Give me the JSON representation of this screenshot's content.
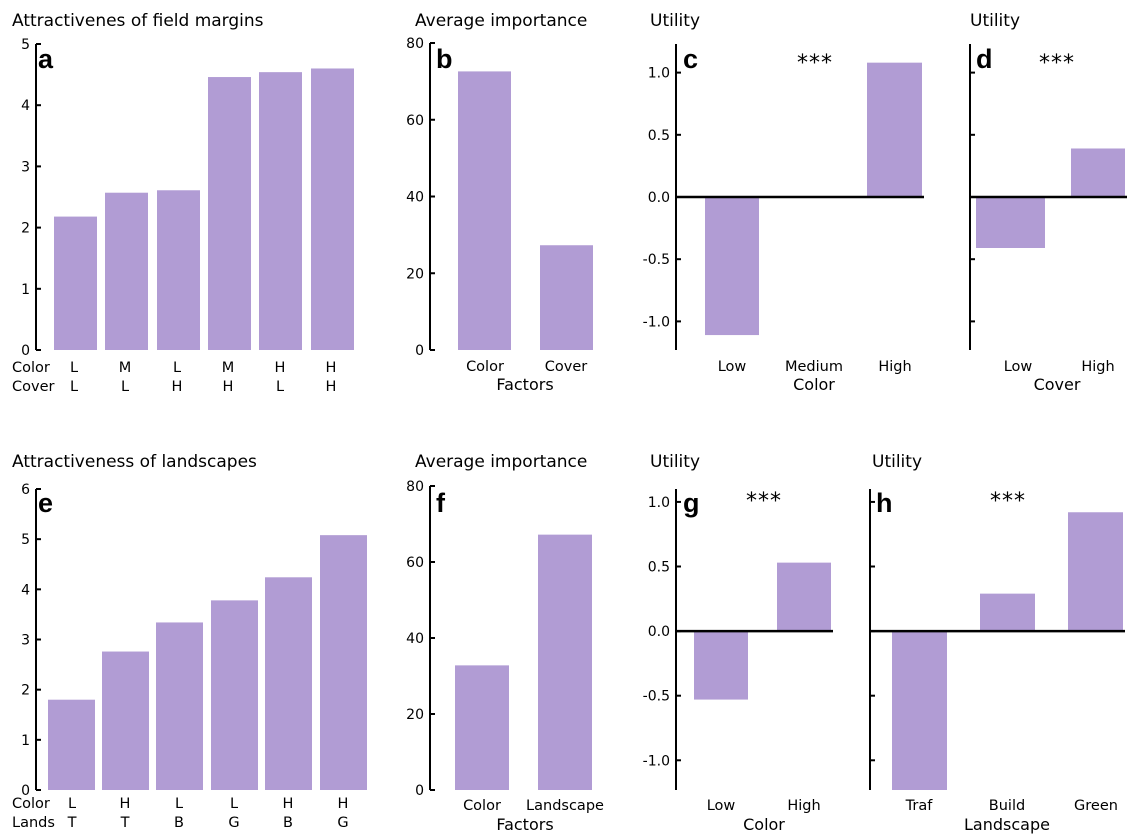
{
  "chart_data": [
    {
      "id": "a",
      "type": "bar",
      "title": "Attractivenes of field margins",
      "panel_letter": "a",
      "ylim": [
        0,
        5
      ],
      "yticks": [
        "0",
        "1",
        "2",
        "3",
        "4",
        "5"
      ],
      "row_labels": [
        "Color",
        "Cover"
      ],
      "categories": [
        [
          "L",
          "L"
        ],
        [
          "M",
          "L"
        ],
        [
          "L",
          "H"
        ],
        [
          "M",
          "H"
        ],
        [
          "H",
          "L"
        ],
        [
          "H",
          "H"
        ]
      ],
      "values": [
        2.18,
        2.57,
        2.61,
        4.46,
        4.54,
        4.6
      ]
    },
    {
      "id": "b",
      "type": "bar",
      "title": "Average importance",
      "panel_letter": "b",
      "ylim": [
        0,
        80
      ],
      "yticks": [
        "0",
        "20",
        "40",
        "60",
        "80"
      ],
      "categories": [
        "Color",
        "Cover"
      ],
      "values": [
        72.6,
        27.3
      ],
      "xlabel": "Factors"
    },
    {
      "id": "c",
      "type": "bar",
      "title": "Utility",
      "panel_letter": "c",
      "significance": "***",
      "ylim": [
        -1.23,
        1.23
      ],
      "yticks": [
        "1.0",
        "0.5",
        "0.0",
        "-0.5",
        "-1.0"
      ],
      "categories": [
        "Low",
        "Medium",
        "High"
      ],
      "values": [
        -1.11,
        0,
        1.08
      ],
      "xlabel": "Color"
    },
    {
      "id": "d",
      "type": "bar",
      "title": "Utility",
      "panel_letter": "d",
      "significance": "***",
      "ylim": [
        -1.23,
        1.23
      ],
      "categories": [
        "Low",
        "High"
      ],
      "values": [
        -0.41,
        0.39
      ],
      "xlabel": "Cover"
    },
    {
      "id": "e",
      "type": "bar",
      "title": "Attractiveness of landscapes",
      "panel_letter": "e",
      "ylim": [
        0,
        6
      ],
      "yticks": [
        "0",
        "1",
        "2",
        "3",
        "4",
        "5",
        "6"
      ],
      "row_labels": [
        "Color",
        "Lands"
      ],
      "categories": [
        [
          "L",
          "T"
        ],
        [
          "H",
          "T"
        ],
        [
          "L",
          "B"
        ],
        [
          "L",
          "G"
        ],
        [
          "H",
          "B"
        ],
        [
          "H",
          "G"
        ]
      ],
      "values": [
        1.8,
        2.76,
        3.34,
        3.78,
        4.24,
        5.08
      ]
    },
    {
      "id": "f",
      "type": "bar",
      "title": "Average importance",
      "panel_letter": "f",
      "ylim": [
        0,
        80
      ],
      "yticks": [
        "0",
        "20",
        "40",
        "60",
        "80"
      ],
      "categories": [
        "Color",
        "Landscape"
      ],
      "values": [
        32.8,
        67.2
      ],
      "xlabel": "Factors"
    },
    {
      "id": "g",
      "type": "bar",
      "title": "Utility",
      "panel_letter": "g",
      "significance": "***",
      "ylim": [
        -1.23,
        1.1
      ],
      "yticks": [
        "1.0",
        "0.5",
        "0.0",
        "-0.5",
        "-1.0"
      ],
      "categories": [
        "Low",
        "High"
      ],
      "values": [
        -0.53,
        0.53
      ],
      "xlabel": "Color"
    },
    {
      "id": "h",
      "type": "bar",
      "title": "Utility",
      "panel_letter": "h",
      "significance": "***",
      "ylim": [
        -1.23,
        1.1
      ],
      "categories": [
        "Traf",
        "Build",
        "Green"
      ],
      "values": [
        -1.23,
        0.29,
        0.92
      ],
      "xlabel": "Landscape"
    }
  ],
  "colors": {
    "bar": "#b19cd4",
    "axis": "#000000"
  }
}
